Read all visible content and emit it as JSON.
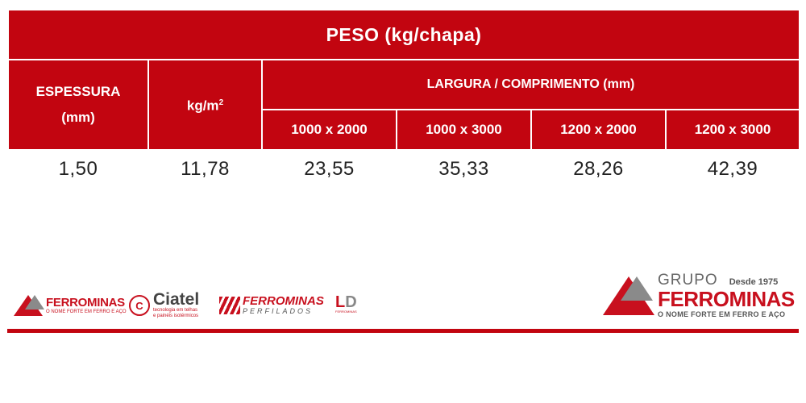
{
  "table": {
    "title": "PESO (kg/chapa)",
    "headers": {
      "espessura_line1": "ESPESSURA",
      "espessura_line2": "(mm)",
      "kgm2_base": "kg/m",
      "kgm2_exp": "2",
      "largura_comprimento": "LARGURA / COMPRIMENTO (mm)",
      "sizes": [
        "1000 x 2000",
        "1000 x 3000",
        "1200 x 2000",
        "1200 x 3000"
      ]
    },
    "rows": [
      {
        "espessura": "1,50",
        "kg_m2": "11,78",
        "values": [
          "23,55",
          "35,33",
          "28,26",
          "42,39"
        ]
      }
    ]
  },
  "footer": {
    "accent_color": "#c20510",
    "logos": {
      "ferrominas": {
        "name": "FERROMINAS",
        "tagline": "O NOME FORTE EM FERRO E AÇO"
      },
      "ciatel": {
        "mark": "C",
        "name": "Ciatel",
        "tagline1": "tecnologia em telhas",
        "tagline2": "e painéis isotérmicos"
      },
      "ferrominas_perfilados": {
        "name": "FERROMINAS",
        "tagline": "PERFILADOS"
      },
      "ld": {
        "letter1": "L",
        "letter2": "D",
        "tagline": "FERROMINAS"
      },
      "grupo_ferrominas": {
        "grupo": "GRUPO",
        "since": "Desde 1975",
        "name": "FERROMINAS",
        "tagline": "O NOME FORTE EM FERRO E AÇO"
      }
    }
  }
}
